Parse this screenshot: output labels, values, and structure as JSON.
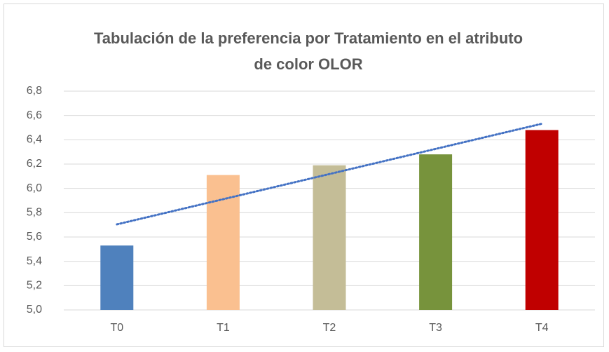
{
  "chart_data": {
    "type": "bar",
    "title": "Tabulación de la preferencia por Tratamiento en el atributo de color OLOR",
    "categories": [
      "T0",
      "T1",
      "T2",
      "T3",
      "T4"
    ],
    "values": [
      5.53,
      6.11,
      6.19,
      6.28,
      6.48
    ],
    "colors": [
      "#4f81bd",
      "#fac090",
      "#c4bd97",
      "#77933c",
      "#c00000"
    ],
    "ylim": [
      5.0,
      6.8
    ],
    "yticks": [
      {
        "value": 5.0,
        "label": "5,0"
      },
      {
        "value": 5.2,
        "label": "5,2"
      },
      {
        "value": 5.4,
        "label": "5,4"
      },
      {
        "value": 5.6,
        "label": "5,6"
      },
      {
        "value": 5.8,
        "label": "5,8"
      },
      {
        "value": 6.0,
        "label": "6,0"
      },
      {
        "value": 6.2,
        "label": "6,2"
      },
      {
        "value": 6.4,
        "label": "6,4"
      },
      {
        "value": 6.6,
        "label": "6,6"
      },
      {
        "value": 6.8,
        "label": "6,8"
      }
    ],
    "grid": true,
    "trendline": "linear",
    "trendline_color": "#4472c4"
  }
}
